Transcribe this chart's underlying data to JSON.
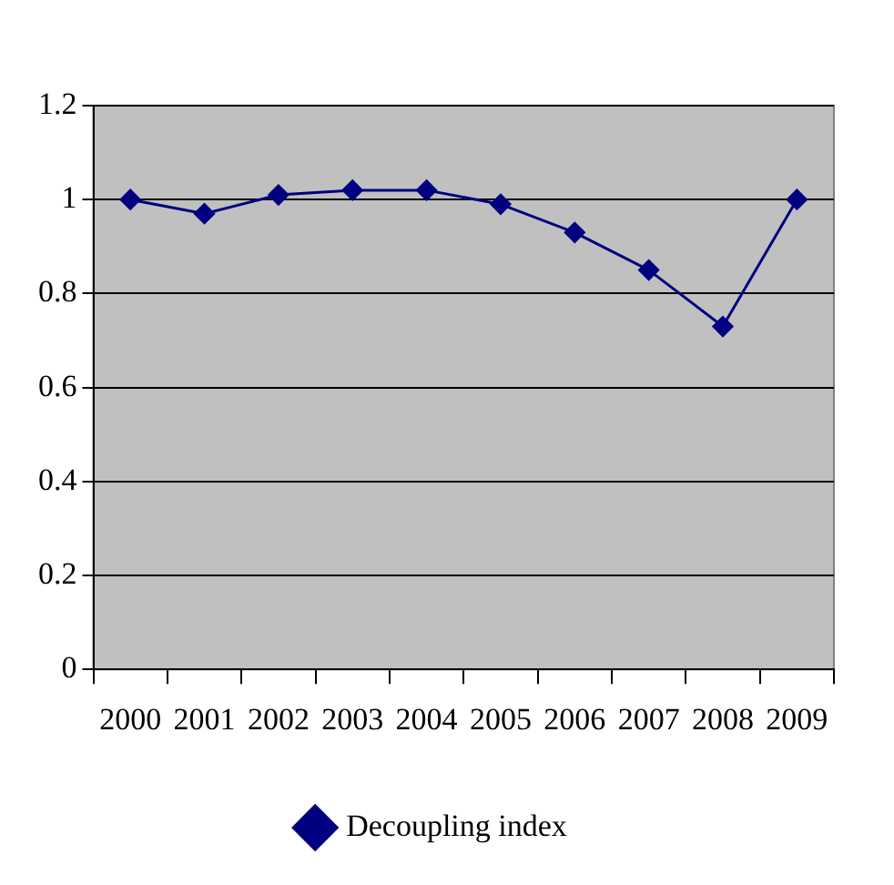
{
  "chart_data": {
    "type": "line",
    "categories": [
      "2000",
      "2001",
      "2002",
      "2003",
      "2004",
      "2005",
      "2006",
      "2007",
      "2008",
      "2009"
    ],
    "series": [
      {
        "name": "Decoupling index",
        "color": "#000080",
        "values": [
          1.0,
          0.97,
          1.01,
          1.02,
          1.02,
          0.99,
          0.93,
          0.85,
          0.73,
          1.0
        ]
      }
    ],
    "ylim": [
      0,
      1.2
    ],
    "yticks": [
      0,
      0.2,
      0.4,
      0.6,
      0.8,
      1,
      1.2
    ],
    "grid": "y",
    "legend": "bottom",
    "marker": "diamond",
    "line_style": "solid"
  }
}
